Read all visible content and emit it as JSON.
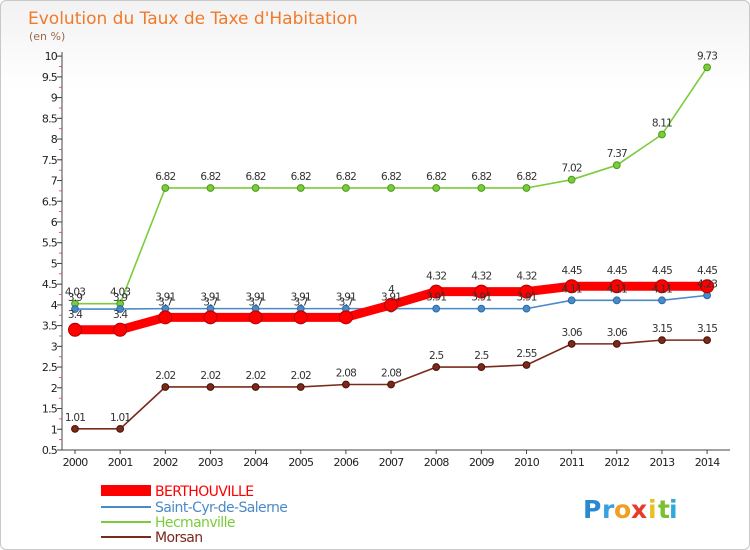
{
  "chart_data": {
    "type": "line",
    "title": "Evolution du Taux de Taxe d'Habitation",
    "subtitle": "(en %)",
    "x": [
      "2000",
      "2001",
      "2002",
      "2003",
      "2004",
      "2005",
      "2006",
      "2007",
      "2008",
      "2009",
      "2010",
      "2011",
      "2012",
      "2013",
      "2014"
    ],
    "y_ticks": [
      "0.5",
      "1",
      "1.5",
      "2",
      "2.5",
      "3",
      "3.5",
      "4",
      "4.5",
      "5",
      "5.5",
      "6",
      "6.5",
      "7",
      "7.5",
      "8",
      "8.5",
      "9",
      "9.5",
      "10"
    ],
    "ylim": [
      0.5,
      10.1
    ],
    "grid": false,
    "legend_position": "bottom-left",
    "series": [
      {
        "name": "BERTHOUVILLE",
        "color": "#ff0000",
        "values": [
          3.4,
          3.4,
          3.7,
          3.7,
          3.7,
          3.7,
          3.7,
          4.0,
          4.32,
          4.32,
          4.32,
          4.45,
          4.45,
          4.45,
          4.45
        ],
        "labels": [
          "3.4",
          "3.4",
          "3.7",
          "3.7",
          "3.7",
          "3.7",
          "3.7",
          "4",
          "4.32",
          "4.32",
          "4.32",
          "4.45",
          "4.45",
          "4.45",
          "4.45"
        ]
      },
      {
        "name": "Saint-Cyr-de-Salerne",
        "color": "#4a8ac8",
        "values": [
          3.9,
          3.9,
          3.91,
          3.91,
          3.91,
          3.91,
          3.91,
          3.91,
          3.91,
          3.91,
          3.91,
          4.11,
          4.11,
          4.11,
          4.23
        ],
        "labels": [
          "3.9",
          "3.9",
          "3.91",
          "3.91",
          "3.91",
          "3.91",
          "3.91",
          "3.91",
          "3.91",
          "3.91",
          "3.91",
          "4.11",
          "4.11",
          "4.11",
          "4.23"
        ]
      },
      {
        "name": "Hecmanville",
        "color": "#7acc3a",
        "values": [
          4.03,
          4.03,
          6.82,
          6.82,
          6.82,
          6.82,
          6.82,
          6.82,
          6.82,
          6.82,
          6.82,
          7.02,
          7.37,
          8.11,
          9.73
        ],
        "labels": [
          "4.03",
          "4.03",
          "6.82",
          "6.82",
          "6.82",
          "6.82",
          "6.82",
          "6.82",
          "6.82",
          "6.82",
          "6.82",
          "7.02",
          "7.37",
          "8.11",
          "9.73"
        ]
      },
      {
        "name": "Morsan",
        "color": "#7a2a1a",
        "values": [
          1.01,
          1.01,
          2.02,
          2.02,
          2.02,
          2.02,
          2.08,
          2.08,
          2.5,
          2.5,
          2.55,
          3.06,
          3.06,
          3.15,
          3.15
        ],
        "labels": [
          "1.01",
          "1.01",
          "2.02",
          "2.02",
          "2.02",
          "2.02",
          "2.08",
          "2.08",
          "2.5",
          "2.5",
          "2.55",
          "3.06",
          "3.06",
          "3.15",
          "3.15"
        ]
      }
    ]
  },
  "branding": {
    "logo_letters": [
      "P",
      "r",
      "o",
      "x",
      "i",
      "t",
      "i"
    ],
    "logo_colors": [
      "#2a8ad0",
      "#3aa0e0",
      "#f0a020",
      "#e83a2a",
      "#e8c020",
      "#7ac030",
      "#30a8d8"
    ]
  }
}
